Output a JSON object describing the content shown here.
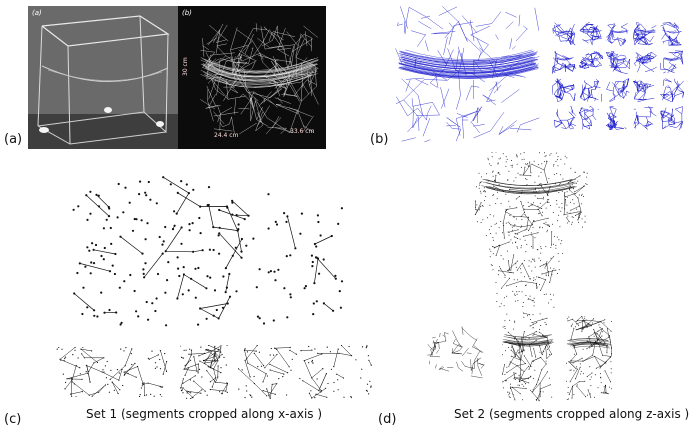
{
  "panels": {
    "a": {
      "label": "(a)",
      "sub_left": "(a)",
      "sub_right": "(b)",
      "dim_depth": "24.4 cm",
      "dim_width": "33.6 cm",
      "dim_height": "30 cm"
    },
    "b": {
      "label": "(b)"
    },
    "c": {
      "label": "(c)",
      "caption": "Set 1 (segments cropped along x-axis  )"
    },
    "d": {
      "label": "(d)",
      "caption": "Set 2 (segments cropped along z-axis  )"
    }
  },
  "colors": {
    "web_blue": "#1a1acc",
    "web_black": "#111111",
    "photo_bg": "#0c0c0c",
    "photo_grey": "#6b6b6b"
  }
}
